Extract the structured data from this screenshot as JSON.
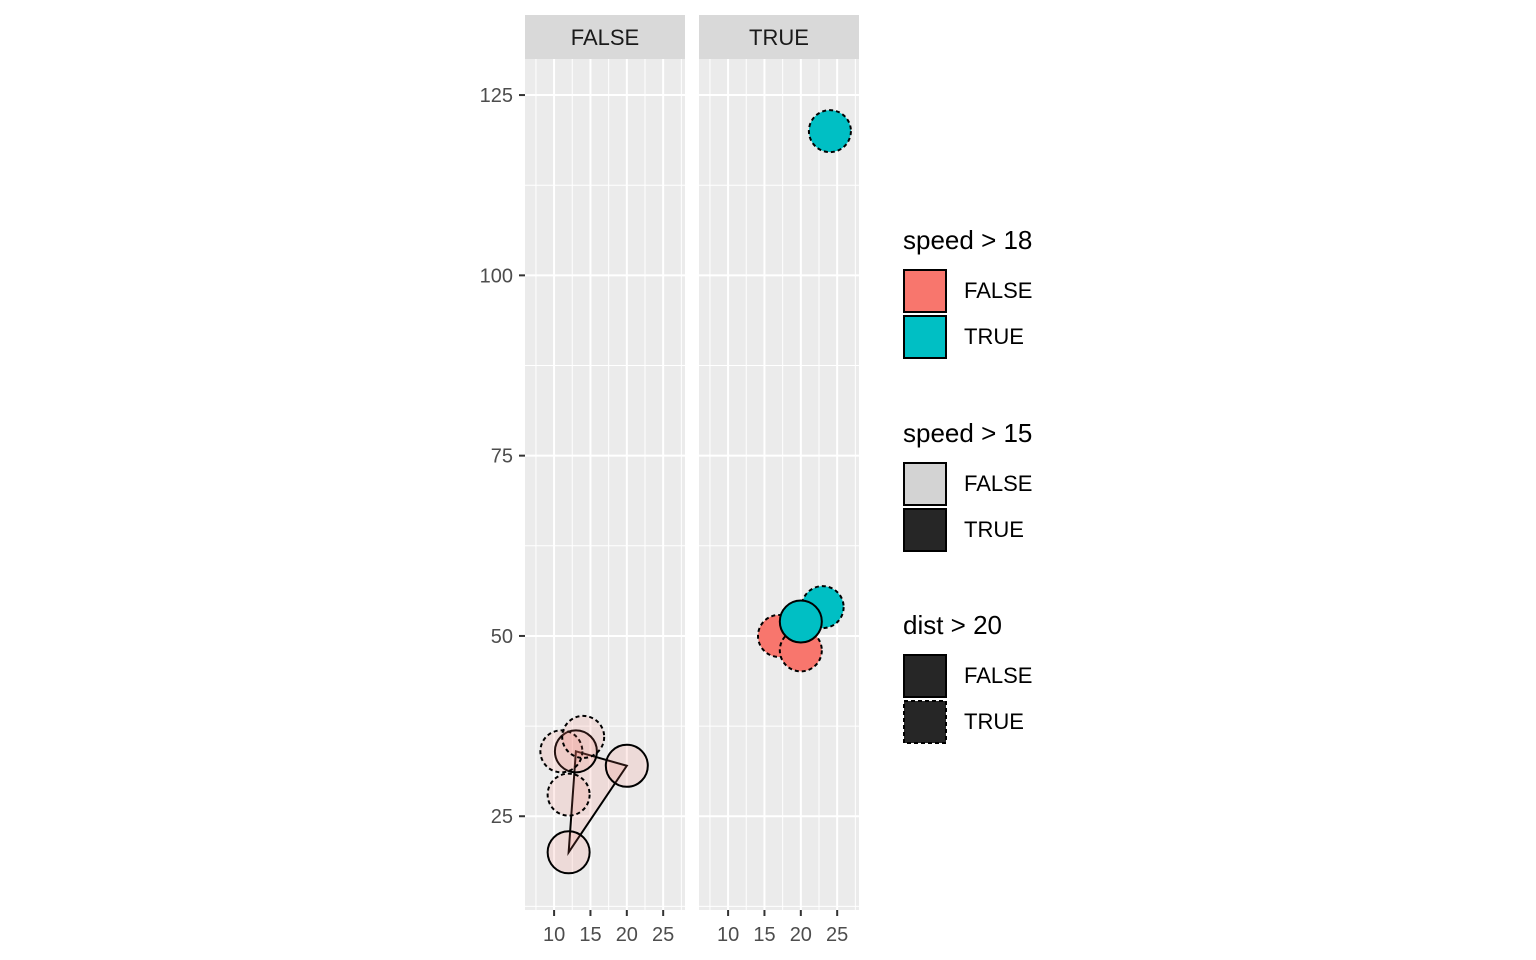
{
  "chart_data": {
    "type": "scatter",
    "facet_variable": "speed > 15",
    "facets": [
      {
        "label": "FALSE",
        "points": [
          {
            "x": 13,
            "y": 34,
            "fill_group": "FALSE",
            "alpha_group": "FALSE",
            "dashed": false
          },
          {
            "x": 20,
            "y": 32,
            "fill_group": "FALSE",
            "alpha_group": "FALSE",
            "dashed": false
          },
          {
            "x": 12,
            "y": 20,
            "fill_group": "FALSE",
            "alpha_group": "FALSE",
            "dashed": false
          },
          {
            "x": 11,
            "y": 34,
            "fill_group": "FALSE",
            "alpha_group": "FALSE",
            "dashed": true
          },
          {
            "x": 14,
            "y": 36,
            "fill_group": "FALSE",
            "alpha_group": "FALSE",
            "dashed": true
          },
          {
            "x": 12,
            "y": 28,
            "fill_group": "FALSE",
            "alpha_group": "FALSE",
            "dashed": true
          }
        ],
        "polygon": [
          [
            13,
            34
          ],
          [
            20,
            32
          ],
          [
            12,
            20
          ]
        ]
      },
      {
        "label": "TRUE",
        "points": [
          {
            "x": 17,
            "y": 50,
            "fill_group": "FALSE",
            "alpha_group": "TRUE",
            "dashed": true
          },
          {
            "x": 20,
            "y": 48,
            "fill_group": "FALSE",
            "alpha_group": "TRUE",
            "dashed": true
          },
          {
            "x": 23,
            "y": 54,
            "fill_group": "TRUE",
            "alpha_group": "TRUE",
            "dashed": true
          },
          {
            "x": 20,
            "y": 52,
            "fill_group": "TRUE",
            "alpha_group": "TRUE",
            "dashed": false
          },
          {
            "x": 24,
            "y": 120,
            "fill_group": "TRUE",
            "alpha_group": "TRUE",
            "dashed": true
          }
        ],
        "polygon": []
      }
    ],
    "x_ticks": [
      10,
      15,
      20,
      25
    ],
    "y_ticks": [
      25,
      50,
      75,
      100,
      125
    ],
    "xlim": [
      6,
      28
    ],
    "ylim": [
      12,
      130
    ],
    "grid": true,
    "legend_position": "right",
    "legends": [
      {
        "title": "speed > 18",
        "aesthetic": "fill",
        "entries": [
          {
            "label": "FALSE",
            "color": "#F8766D"
          },
          {
            "label": "TRUE",
            "color": "#00BFC4"
          }
        ]
      },
      {
        "title": "speed > 15",
        "aesthetic": "alpha",
        "entries": [
          {
            "label": "FALSE",
            "color": "#D3D3D3"
          },
          {
            "label": "TRUE",
            "color": "#262626"
          }
        ]
      },
      {
        "title": "dist > 20",
        "aesthetic": "linetype",
        "entries": [
          {
            "label": "FALSE",
            "color": "#262626",
            "linetype": "solid"
          },
          {
            "label": "TRUE",
            "color": "#262626",
            "linetype": "dashed"
          }
        ]
      }
    ],
    "colors": {
      "panel_background": "#EBEBEB",
      "strip_background": "#D9D9D9",
      "fill_false": "#F8766D",
      "fill_true": "#00BFC4"
    }
  }
}
